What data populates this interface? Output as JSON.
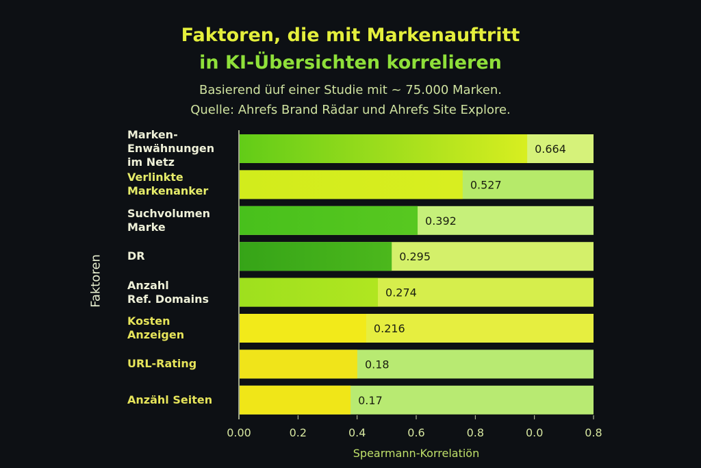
{
  "chart_data": {
    "type": "bar",
    "orientation": "horizontal",
    "title": "Faktoren, die mit Markenauftritt in KI-Übersichten korrelieren",
    "title_lines": [
      "Faktoren, die mit Markenauftritt",
      "in KI-Übersichten korrelieren"
    ],
    "subtitle_lines": [
      "Basierend üuf einer Studie mit ~ 75.000 Marken.",
      "Quelle: Ahrefs Brand Rädar und Ahrefs Site Explore."
    ],
    "xlabel": "Spearmann-Korrelatiön",
    "ylabel": "Faktoren",
    "x_ticks": [
      "0.00",
      "0.2",
      "0.4",
      "0.6",
      "0.8",
      "0.0",
      "0.8"
    ],
    "categories": [
      [
        "Marken-",
        "Enwähnungen",
        "im Netz"
      ],
      [
        "Verlinkte",
        "Markenanker"
      ],
      [
        "Suchvolumen",
        "Marke"
      ],
      [
        "DR"
      ],
      [
        "Anzahl",
        "Ref. Domains"
      ],
      [
        "Kosten",
        "Anzeigen"
      ],
      [
        "URL-Rating"
      ],
      [
        "Anzähl Seiten"
      ]
    ],
    "category_colors": [
      "#eef0d8",
      "#e6ec6a",
      "#eef0d8",
      "#eef0d8",
      "#eef0d8",
      "#e6e45a",
      "#e6e45a",
      "#e6e45a"
    ],
    "value_labels": [
      "0.664",
      "0.527",
      "0.392",
      "0.295",
      "0.274",
      "0.216",
      "0.18",
      "0.17"
    ],
    "values": [
      0.664,
      0.527,
      0.392,
      0.295,
      0.274,
      0.216,
      0.18,
      0.17
    ],
    "bar_fill_fraction": [
      0.811,
      0.629,
      0.502,
      0.429,
      0.39,
      0.357,
      0.332,
      0.313
    ],
    "fill_colors": [
      [
        "#62cc18",
        "#d8ee20"
      ],
      [
        "#d2ec1c",
        "#d8ee20"
      ],
      [
        "#48c01c",
        "#58c820"
      ],
      [
        "#36a418",
        "#4cb81c"
      ],
      [
        "#9ee01e",
        "#b0e620"
      ],
      [
        "#f2ea1a",
        "#f2ea1a"
      ],
      [
        "#f0e41a",
        "#f0e41a"
      ],
      [
        "#f0e618",
        "#f0e618"
      ]
    ],
    "track_colors": [
      "#d6f27a",
      "#b6ea6a",
      "#c6f07a",
      "#d4f06a",
      "#d6ee4c",
      "#e6ee40",
      "#b8ea72",
      "#b8ea72"
    ]
  }
}
